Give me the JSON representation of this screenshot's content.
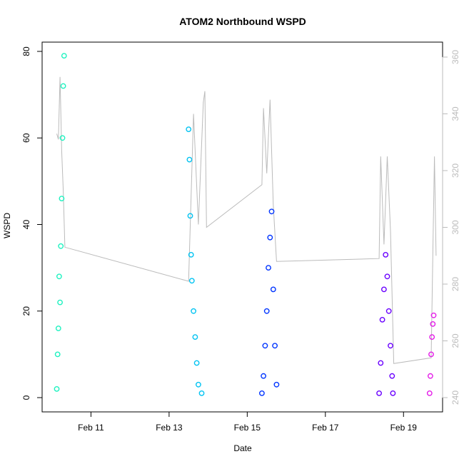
{
  "chart_data": {
    "type": "scatter",
    "title": "ATOM2 Northbound WSPD",
    "xlabel": "Date",
    "ylabel": "WSPD",
    "x_tick_labels": [
      "Feb 11",
      "Feb 13",
      "Feb 15",
      "Feb 17",
      "Feb 19"
    ],
    "xlim": [
      "2015-02-09 18:00",
      "2015-02-20 00:00"
    ],
    "ylim": [
      0,
      80
    ],
    "y_ticks": [
      0,
      20,
      40,
      60,
      80
    ],
    "y2_ticks": [
      240,
      260,
      280,
      300,
      320,
      340,
      360
    ],
    "y2lim": [
      240,
      362
    ],
    "grid": false,
    "legend": "none",
    "series": [
      {
        "color": "#1EF2C0",
        "points": [
          [
            "2015-02-10 03:00",
            2
          ],
          [
            "2015-02-10 03:30",
            10
          ],
          [
            "2015-02-10 04:00",
            16
          ],
          [
            "2015-02-10 04:30",
            28
          ],
          [
            "2015-02-10 05:00",
            22
          ],
          [
            "2015-02-10 05:30",
            35
          ],
          [
            "2015-02-10 06:00",
            46
          ],
          [
            "2015-02-10 06:30",
            60
          ],
          [
            "2015-02-10 07:00",
            72
          ],
          [
            "2015-02-10 07:30",
            79
          ]
        ]
      },
      {
        "color": "#00C3F2",
        "points": [
          [
            "2015-02-13 12:00",
            62
          ],
          [
            "2015-02-13 12:30",
            55
          ],
          [
            "2015-02-13 13:00",
            42
          ],
          [
            "2015-02-13 13:30",
            33
          ],
          [
            "2015-02-13 14:00",
            27
          ],
          [
            "2015-02-13 15:00",
            20
          ],
          [
            "2015-02-13 16:00",
            14
          ],
          [
            "2015-02-13 17:00",
            8
          ],
          [
            "2015-02-13 18:00",
            3
          ],
          [
            "2015-02-13 20:00",
            1
          ]
        ]
      },
      {
        "color": "#0034FF",
        "points": [
          [
            "2015-02-15 09:00",
            1
          ],
          [
            "2015-02-15 10:00",
            5
          ],
          [
            "2015-02-15 11:00",
            12
          ],
          [
            "2015-02-15 12:00",
            20
          ],
          [
            "2015-02-15 13:00",
            30
          ],
          [
            "2015-02-15 14:00",
            37
          ],
          [
            "2015-02-15 15:00",
            43
          ],
          [
            "2015-02-15 16:00",
            25
          ],
          [
            "2015-02-15 17:00",
            12
          ],
          [
            "2015-02-15 18:00",
            3
          ]
        ]
      },
      {
        "color": "#6A00FF",
        "points": [
          [
            "2015-02-18 09:00",
            1
          ],
          [
            "2015-02-18 10:00",
            8
          ],
          [
            "2015-02-18 11:00",
            18
          ],
          [
            "2015-02-18 12:00",
            25
          ],
          [
            "2015-02-18 13:00",
            33
          ],
          [
            "2015-02-18 14:00",
            28
          ],
          [
            "2015-02-18 15:00",
            20
          ],
          [
            "2015-02-18 16:00",
            12
          ],
          [
            "2015-02-18 17:00",
            5
          ],
          [
            "2015-02-18 17:30",
            1
          ]
        ]
      },
      {
        "color": "#E41DE8",
        "points": [
          [
            "2015-02-19 16:00",
            1
          ],
          [
            "2015-02-19 16:30",
            5
          ],
          [
            "2015-02-19 17:00",
            10
          ],
          [
            "2015-02-19 17:30",
            14
          ],
          [
            "2015-02-19 18:00",
            17
          ],
          [
            "2015-02-19 18:30",
            19
          ]
        ]
      }
    ],
    "direction_line": {
      "color": "#bbbbbb",
      "axis": "right",
      "points": [
        [
          "2015-02-10 03:00",
          333
        ],
        [
          "2015-02-10 04:00",
          331
        ],
        [
          "2015-02-10 05:00",
          353
        ],
        [
          "2015-02-10 06:00",
          327
        ],
        [
          "2015-02-10 07:00",
          313
        ],
        [
          "2015-02-10 08:00",
          293
        ],
        [
          "2015-02-13 12:00",
          281
        ],
        [
          "2015-02-13 15:00",
          340
        ],
        [
          "2015-02-13 18:00",
          301
        ],
        [
          "2015-02-13 21:00",
          344
        ],
        [
          "2015-02-13 22:00",
          348
        ],
        [
          "2015-02-13 23:00",
          300
        ],
        [
          "2015-02-15 09:00",
          315
        ],
        [
          "2015-02-15 10:00",
          342
        ],
        [
          "2015-02-15 12:00",
          319
        ],
        [
          "2015-02-15 14:00",
          345
        ],
        [
          "2015-02-15 16:00",
          308
        ],
        [
          "2015-02-15 18:00",
          288
        ],
        [
          "2015-02-18 09:00",
          289
        ],
        [
          "2015-02-18 10:00",
          325
        ],
        [
          "2015-02-18 12:00",
          294
        ],
        [
          "2015-02-18 14:00",
          325
        ],
        [
          "2015-02-18 16:00",
          299
        ],
        [
          "2015-02-18 18:00",
          252
        ],
        [
          "2015-02-19 17:00",
          254
        ],
        [
          "2015-02-19 18:00",
          290
        ],
        [
          "2015-02-19 19:00",
          325
        ],
        [
          "2015-02-19 20:00",
          290
        ]
      ]
    }
  }
}
